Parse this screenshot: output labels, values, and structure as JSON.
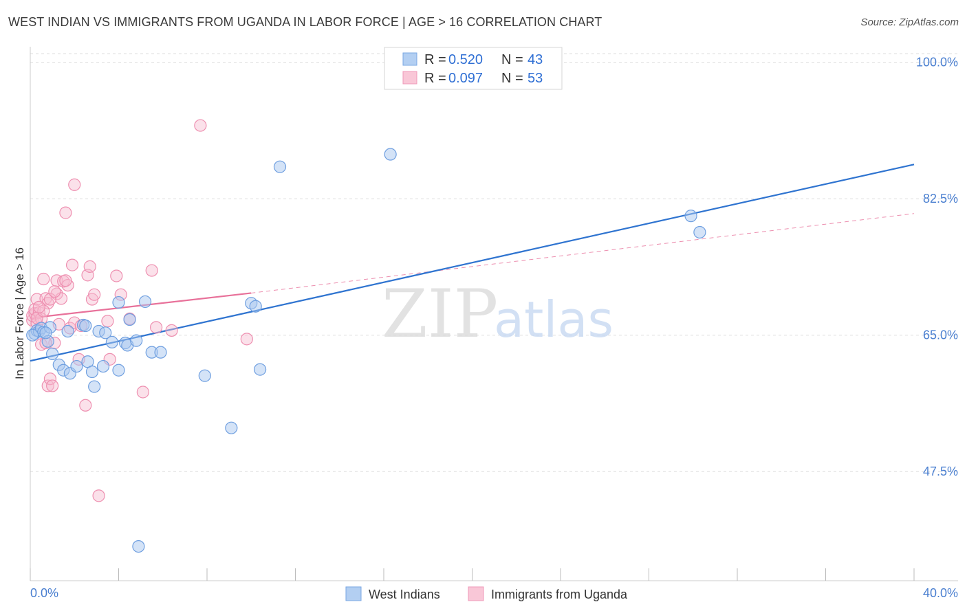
{
  "title": "WEST INDIAN VS IMMIGRANTS FROM UGANDA IN LABOR FORCE | AGE > 16 CORRELATION CHART",
  "source": "Source: ZipAtlas.com",
  "watermark": {
    "zip": "ZIP",
    "atlas": "atlas"
  },
  "colors": {
    "blue_fill": "#a9c8f0",
    "blue_stroke": "#6f9fe0",
    "blue_line": "#2f74d0",
    "pink_fill": "#f7bcd0",
    "pink_stroke": "#ee8fb0",
    "pink_line": "#e8719a",
    "grid": "#dddddd",
    "axis_text": "#4a7fd0"
  },
  "legend": {
    "rows": [
      {
        "r_label": "R =",
        "r_value": "0.520",
        "n_label": "N =",
        "n_value": "43"
      },
      {
        "r_label": "R =",
        "r_value": "0.097",
        "n_label": "N =",
        "n_value": "53"
      }
    ]
  },
  "chart_data": {
    "type": "scatter",
    "title": "WEST INDIAN VS IMMIGRANTS FROM UGANDA IN LABOR FORCE | AGE > 16 CORRELATION CHART",
    "xlabel": "",
    "ylabel": "In Labor Force | Age > 16",
    "xlim": [
      0,
      40
    ],
    "ylim": [
      33.5,
      102
    ],
    "x_tick_labels": [
      "0.0%",
      "40.0%"
    ],
    "y_ticks": [
      47.5,
      65.0,
      82.5,
      100.0
    ],
    "y_tick_labels": [
      "47.5%",
      "65.0%",
      "82.5%",
      "100.0%"
    ],
    "series": [
      {
        "name": "West Indians",
        "trend": {
          "x": [
            0,
            40
          ],
          "y": [
            61.7,
            86.9
          ]
        },
        "points": [
          [
            0.2,
            65.2
          ],
          [
            0.3,
            65.6
          ],
          [
            0.4,
            65.5
          ],
          [
            0.5,
            65.9
          ],
          [
            0.6,
            65.4
          ],
          [
            0.8,
            64.2
          ],
          [
            0.9,
            66.0
          ],
          [
            1.0,
            62.6
          ],
          [
            1.3,
            61.2
          ],
          [
            1.5,
            60.5
          ],
          [
            1.7,
            65.5
          ],
          [
            1.8,
            60.1
          ],
          [
            2.1,
            61.0
          ],
          [
            2.4,
            66.3
          ],
          [
            2.5,
            66.2
          ],
          [
            2.6,
            61.6
          ],
          [
            2.8,
            60.3
          ],
          [
            2.9,
            58.4
          ],
          [
            3.1,
            65.5
          ],
          [
            3.3,
            61.0
          ],
          [
            3.4,
            65.3
          ],
          [
            3.7,
            64.1
          ],
          [
            4.0,
            60.5
          ],
          [
            4.0,
            69.2
          ],
          [
            4.3,
            64.0
          ],
          [
            4.4,
            63.7
          ],
          [
            4.5,
            67.0
          ],
          [
            4.8,
            64.3
          ],
          [
            4.9,
            37.9
          ],
          [
            5.2,
            69.3
          ],
          [
            5.5,
            62.8
          ],
          [
            5.9,
            62.8
          ],
          [
            7.9,
            59.8
          ],
          [
            9.1,
            53.1
          ],
          [
            10.0,
            69.1
          ],
          [
            10.2,
            68.7
          ],
          [
            10.4,
            60.6
          ],
          [
            11.3,
            86.6
          ],
          [
            16.3,
            88.2
          ],
          [
            29.9,
            80.3
          ],
          [
            30.3,
            78.2
          ],
          [
            0.1,
            65.0
          ],
          [
            0.7,
            65.3
          ]
        ]
      },
      {
        "name": "Immigrants from Uganda",
        "trend": {
          "x": [
            0,
            10.0
          ],
          "y": [
            67.2,
            70.4
          ]
        },
        "trend_extended": {
          "x": [
            10.0,
            40
          ],
          "y": [
            70.4,
            80.6
          ]
        },
        "points": [
          [
            0.1,
            66.9
          ],
          [
            0.1,
            67.5
          ],
          [
            0.2,
            67.8
          ],
          [
            0.2,
            68.3
          ],
          [
            0.3,
            69.6
          ],
          [
            0.3,
            66.5
          ],
          [
            0.4,
            67.9
          ],
          [
            0.5,
            67.1
          ],
          [
            0.5,
            63.8
          ],
          [
            0.6,
            72.2
          ],
          [
            0.7,
            69.7
          ],
          [
            0.8,
            58.5
          ],
          [
            0.8,
            69.1
          ],
          [
            0.9,
            59.4
          ],
          [
            1.0,
            58.5
          ],
          [
            1.1,
            64.0
          ],
          [
            1.2,
            70.3
          ],
          [
            1.2,
            72.0
          ],
          [
            1.4,
            69.7
          ],
          [
            1.5,
            71.9
          ],
          [
            1.6,
            80.7
          ],
          [
            1.7,
            71.4
          ],
          [
            1.8,
            65.9
          ],
          [
            1.9,
            74.0
          ],
          [
            2.0,
            66.6
          ],
          [
            2.0,
            84.3
          ],
          [
            2.2,
            61.9
          ],
          [
            2.5,
            56.0
          ],
          [
            2.6,
            72.7
          ],
          [
            2.7,
            73.8
          ],
          [
            2.8,
            69.6
          ],
          [
            2.9,
            70.2
          ],
          [
            3.1,
            44.4
          ],
          [
            3.5,
            66.8
          ],
          [
            3.6,
            61.9
          ],
          [
            3.9,
            72.6
          ],
          [
            4.1,
            70.2
          ],
          [
            4.5,
            67.1
          ],
          [
            5.1,
            57.7
          ],
          [
            5.5,
            73.3
          ],
          [
            5.7,
            66.0
          ],
          [
            6.4,
            65.6
          ],
          [
            7.7,
            91.9
          ],
          [
            9.8,
            64.5
          ],
          [
            0.9,
            69.6
          ],
          [
            0.3,
            67.2
          ],
          [
            0.6,
            68.1
          ],
          [
            1.3,
            66.4
          ],
          [
            0.4,
            68.6
          ],
          [
            0.7,
            64.0
          ],
          [
            1.1,
            70.6
          ],
          [
            1.6,
            72.0
          ],
          [
            2.3,
            66.2
          ]
        ]
      }
    ]
  },
  "bottom_legend": [
    "West Indians",
    "Immigrants from Uganda"
  ]
}
